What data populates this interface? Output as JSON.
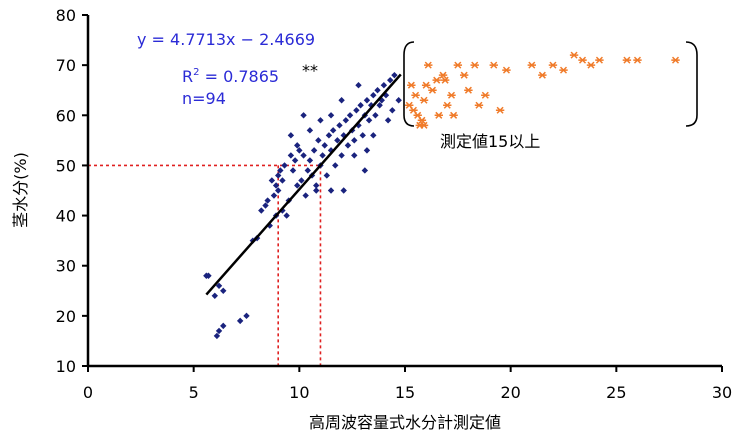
{
  "chart_data": {
    "type": "scatter",
    "title": "",
    "xlabel": "高周波容量式水分計測定値",
    "ylabel": "茎水分(%)",
    "xlim": [
      0,
      30
    ],
    "ylim": [
      10,
      80
    ],
    "xticks": [
      0,
      5,
      10,
      15,
      20,
      25,
      30
    ],
    "yticks": [
      10,
      20,
      30,
      40,
      50,
      60,
      70,
      80
    ],
    "grid": false,
    "colors": {
      "blue": "#1a237e",
      "orange": "#f07b2a",
      "text_blue": "#2b2bd6",
      "guide_red": "#e02020"
    },
    "annotations": {
      "equation": "y = 4.7713x − 2.4669",
      "r2_label": "R",
      "r2_sup": "2",
      "r2_value": " = 0.7865",
      "sig": "**",
      "n": "n=94",
      "bracket_label": "測定値15以上"
    },
    "regression": {
      "slope": 4.7713,
      "intercept": -2.4669,
      "x_range": [
        5.6,
        14.8
      ]
    },
    "guides": [
      {
        "x": 9.0,
        "y": 50
      },
      {
        "x": 11.0,
        "y": 50
      }
    ],
    "series": [
      {
        "marker": "diamond",
        "points": [
          [
            5.6,
            28
          ],
          [
            5.7,
            28
          ],
          [
            6.0,
            24
          ],
          [
            6.2,
            26
          ],
          [
            6.4,
            25
          ],
          [
            6.1,
            16
          ],
          [
            6.2,
            17
          ],
          [
            6.4,
            18
          ],
          [
            7.2,
            19
          ],
          [
            7.5,
            20
          ],
          [
            7.8,
            35
          ],
          [
            8.0,
            35.5
          ],
          [
            8.2,
            41
          ],
          [
            8.4,
            42
          ],
          [
            8.5,
            43
          ],
          [
            8.6,
            38
          ],
          [
            8.8,
            44
          ],
          [
            8.9,
            46
          ],
          [
            9.0,
            48
          ],
          [
            9.1,
            49
          ],
          [
            9.2,
            47
          ],
          [
            9.0,
            45
          ],
          [
            9.3,
            50
          ],
          [
            9.5,
            43
          ],
          [
            9.4,
            40
          ],
          [
            9.6,
            52
          ],
          [
            9.7,
            49
          ],
          [
            9.8,
            51
          ],
          [
            9.9,
            46
          ],
          [
            10.0,
            53
          ],
          [
            10.1,
            47
          ],
          [
            10.2,
            52
          ],
          [
            10.3,
            44
          ],
          [
            10.4,
            49
          ],
          [
            10.5,
            51
          ],
          [
            10.6,
            48
          ],
          [
            10.7,
            53
          ],
          [
            10.8,
            46
          ],
          [
            10.9,
            55
          ],
          [
            11.0,
            50
          ],
          [
            11.1,
            52
          ],
          [
            11.2,
            54
          ],
          [
            11.3,
            48
          ],
          [
            11.4,
            56
          ],
          [
            11.5,
            53
          ],
          [
            11.6,
            57
          ],
          [
            11.7,
            50
          ],
          [
            11.8,
            55
          ],
          [
            11.9,
            58
          ],
          [
            12.0,
            52
          ],
          [
            12.1,
            56
          ],
          [
            12.2,
            59
          ],
          [
            12.3,
            54
          ],
          [
            12.4,
            60
          ],
          [
            12.5,
            57
          ],
          [
            12.6,
            55
          ],
          [
            12.7,
            61
          ],
          [
            12.8,
            58
          ],
          [
            12.9,
            62
          ],
          [
            13.0,
            56
          ],
          [
            13.1,
            60
          ],
          [
            13.2,
            63
          ],
          [
            13.3,
            59
          ],
          [
            13.4,
            62
          ],
          [
            13.5,
            64
          ],
          [
            13.6,
            60
          ],
          [
            13.7,
            65
          ],
          [
            13.8,
            62
          ],
          [
            13.9,
            63
          ],
          [
            14.0,
            66
          ],
          [
            14.1,
            64
          ],
          [
            14.3,
            67
          ],
          [
            14.5,
            68
          ],
          [
            14.7,
            63
          ],
          [
            12.0,
            63
          ],
          [
            11.5,
            60
          ],
          [
            10.5,
            57
          ],
          [
            9.9,
            54
          ],
          [
            9.2,
            41
          ],
          [
            8.9,
            40
          ],
          [
            10.8,
            45
          ],
          [
            11.5,
            45
          ],
          [
            12.1,
            45
          ],
          [
            12.6,
            52
          ],
          [
            13.2,
            53
          ],
          [
            13.5,
            56
          ],
          [
            14.2,
            59
          ],
          [
            14.4,
            61
          ],
          [
            10.2,
            60
          ],
          [
            11.0,
            59
          ],
          [
            12.8,
            66
          ],
          [
            13.1,
            49
          ],
          [
            9.6,
            56
          ],
          [
            8.7,
            47
          ]
        ]
      },
      {
        "marker": "asterisk",
        "points": [
          [
            15.2,
            62
          ],
          [
            15.4,
            61
          ],
          [
            15.5,
            64
          ],
          [
            15.6,
            60
          ],
          [
            15.7,
            58
          ],
          [
            15.8,
            59
          ],
          [
            15.9,
            63
          ],
          [
            16.0,
            66
          ],
          [
            16.1,
            70
          ],
          [
            16.3,
            65
          ],
          [
            16.5,
            67
          ],
          [
            16.6,
            60
          ],
          [
            16.8,
            68
          ],
          [
            17.0,
            62
          ],
          [
            17.2,
            64
          ],
          [
            17.5,
            70
          ],
          [
            17.8,
            68
          ],
          [
            18.0,
            65
          ],
          [
            18.3,
            70
          ],
          [
            18.5,
            62
          ],
          [
            18.8,
            64
          ],
          [
            19.2,
            70
          ],
          [
            19.5,
            61
          ],
          [
            19.8,
            69
          ],
          [
            21.0,
            70
          ],
          [
            21.5,
            68
          ],
          [
            22.0,
            70
          ],
          [
            22.5,
            69
          ],
          [
            23.0,
            72
          ],
          [
            23.4,
            71
          ],
          [
            23.8,
            70
          ],
          [
            24.2,
            71
          ],
          [
            25.5,
            71
          ],
          [
            26.0,
            71
          ],
          [
            27.8,
            71
          ],
          [
            15.3,
            66
          ],
          [
            17.3,
            60
          ],
          [
            16.9,
            67
          ],
          [
            15.9,
            58
          ]
        ]
      }
    ]
  }
}
